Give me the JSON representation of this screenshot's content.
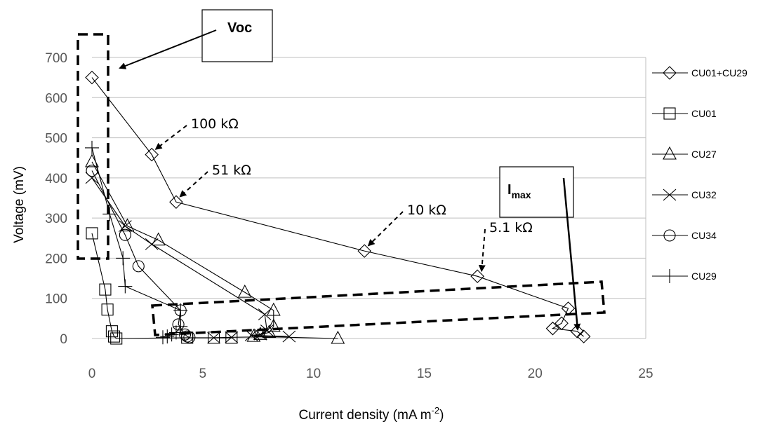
{
  "chart_data": {
    "type": "line",
    "xlabel": "Current density (mA m",
    "xlabel_sup": "-2",
    "xlabel_end": ")",
    "ylabel": "Voltage (mV)",
    "xlim": [
      0,
      25
    ],
    "ylim": [
      0,
      700
    ],
    "x_ticks": [
      "0",
      "5",
      "10",
      "15",
      "20",
      "25"
    ],
    "y_ticks": [
      "0",
      "100",
      "200",
      "300",
      "400",
      "500",
      "600",
      "700"
    ],
    "grid": "horizontal",
    "legend_position": "right",
    "series": [
      {
        "name": "CU01+CU29",
        "marker": "diamond",
        "points": [
          [
            0,
            650
          ],
          [
            2.7,
            458
          ],
          [
            3.8,
            340
          ],
          [
            12.3,
            218
          ],
          [
            17.4,
            155
          ],
          [
            21.5,
            75
          ],
          [
            21.2,
            38
          ],
          [
            20.8,
            25
          ],
          [
            21.9,
            18
          ],
          [
            22.2,
            5
          ]
        ]
      },
      {
        "name": "CU01",
        "marker": "square",
        "points": [
          [
            0,
            262
          ],
          [
            0.6,
            122
          ],
          [
            0.7,
            72
          ],
          [
            0.9,
            18
          ],
          [
            1,
            5
          ],
          [
            1.1,
            0
          ],
          [
            4.3,
            2
          ],
          [
            5.5,
            2
          ],
          [
            6.3,
            2
          ]
        ]
      },
      {
        "name": "CU27",
        "marker": "triangle",
        "points": [
          [
            0,
            440
          ],
          [
            1.6,
            280
          ],
          [
            3,
            245
          ],
          [
            6.9,
            115
          ],
          [
            8.2,
            70
          ],
          [
            8.2,
            30
          ],
          [
            8,
            15
          ],
          [
            7.6,
            10
          ],
          [
            7.3,
            5
          ],
          [
            11.1,
            0
          ]
        ]
      },
      {
        "name": "CU32",
        "marker": "x",
        "points": [
          [
            0,
            400
          ],
          [
            1.5,
            280
          ],
          [
            2.7,
            235
          ],
          [
            7.8,
            60
          ],
          [
            7.9,
            20
          ],
          [
            7.6,
            10
          ],
          [
            7.2,
            8
          ],
          [
            8.9,
            5
          ],
          [
            6.3,
            3
          ],
          [
            5.5,
            2
          ]
        ]
      },
      {
        "name": "CU34",
        "marker": "circle",
        "points": [
          [
            0,
            418
          ],
          [
            1.5,
            258
          ],
          [
            2.1,
            180
          ],
          [
            4,
            70
          ],
          [
            3.9,
            35
          ],
          [
            4.2,
            10
          ],
          [
            4.3,
            5
          ],
          [
            4.4,
            3
          ]
        ]
      },
      {
        "name": "CU29",
        "marker": "plus",
        "points": [
          [
            0,
            475
          ],
          [
            0.8,
            310
          ],
          [
            1.4,
            200
          ],
          [
            1.5,
            130
          ],
          [
            4,
            70
          ],
          [
            4,
            30
          ],
          [
            3.8,
            15
          ],
          [
            3.6,
            10
          ],
          [
            3.4,
            5
          ],
          [
            3.2,
            3
          ]
        ]
      }
    ],
    "annotations": [
      {
        "text": "100 kΩ",
        "target": [
          2.7,
          458
        ]
      },
      {
        "text": "51 kΩ",
        "target": [
          3.8,
          340
        ]
      },
      {
        "text": "10 kΩ",
        "target": [
          12.3,
          218
        ]
      },
      {
        "text": "5.1 kΩ",
        "target": [
          17.4,
          155
        ]
      }
    ],
    "callouts": [
      {
        "label": "Voc"
      },
      {
        "label": "I",
        "sub": "max"
      }
    ]
  }
}
